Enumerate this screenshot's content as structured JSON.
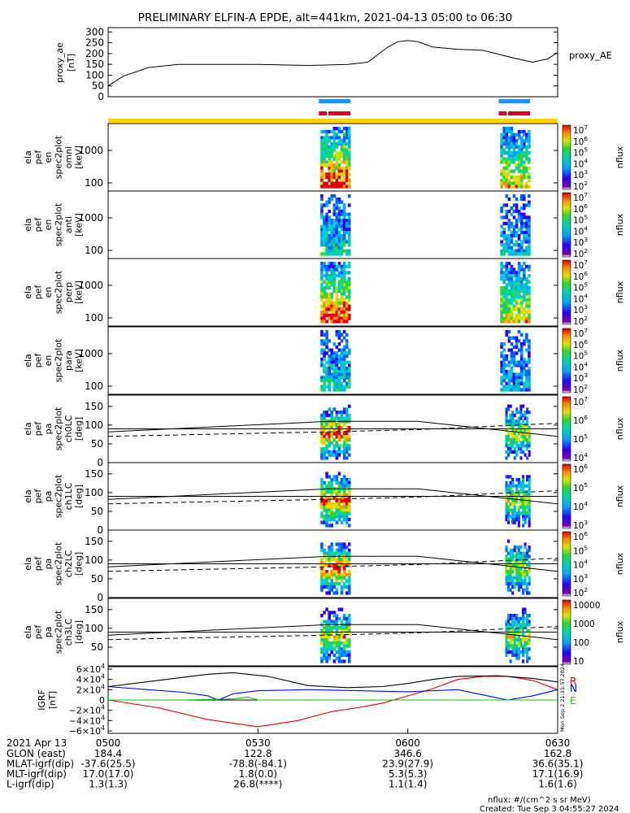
{
  "title": "PRELIMINARY ELFIN-A EPDE, alt=441km, 2021-04-13 05:00 to 06:30",
  "colors": {
    "blue_bar": "#1e90ff",
    "red_bar": "#e0001b",
    "yellow_bar": "#ffd400",
    "igrf_r": "#e00000",
    "igrf_n": "#0000ff",
    "igrf_e": "#00cc00"
  },
  "chart_data": [
    {
      "type": "line",
      "name": "proxy_ae",
      "ylabel_lines": [
        "proxy_ae",
        "[nT]"
      ],
      "legend": "proxy_AE",
      "yticks": [
        "300",
        "250",
        "200",
        "150",
        "100",
        "50",
        "0"
      ],
      "ylim": [
        0,
        300
      ],
      "x_minutes": [
        0,
        3,
        8,
        14,
        20,
        30,
        40,
        48,
        52,
        56,
        58,
        60,
        62,
        65,
        70,
        75,
        82,
        85,
        88,
        90
      ],
      "values": [
        50,
        95,
        135,
        150,
        150,
        150,
        145,
        150,
        160,
        230,
        255,
        260,
        255,
        230,
        220,
        215,
        175,
        160,
        175,
        205
      ]
    },
    {
      "type": "bars",
      "name": "science-zone-bars",
      "blue": [
        [
          42.2,
          48.5
        ],
        [
          78.2,
          84.5
        ]
      ],
      "red": [
        [
          42.2,
          48.5
        ],
        [
          78.2,
          84.5
        ]
      ],
      "yellow": [
        [
          0,
          90
        ]
      ]
    },
    {
      "type": "heatmap",
      "name": "spectrogram-omni",
      "ylabel_lines": [
        "ela",
        "pef",
        "en",
        "spec2plot",
        "omni",
        "[keV]"
      ],
      "yticks": [
        "1000",
        "100"
      ],
      "colorbar_label": "nflux",
      "colorbar_ticks": [
        "10^7",
        "10^6",
        "10^5",
        "10^4",
        "10^3",
        "10^2"
      ]
    },
    {
      "type": "heatmap",
      "name": "spectrogram-anti",
      "ylabel_lines": [
        "ela",
        "pef",
        "en",
        "spec2plot",
        "anti",
        "[keV]"
      ],
      "yticks": [
        "1000",
        "100"
      ],
      "colorbar_label": "nflux",
      "colorbar_ticks": [
        "10^7",
        "10^6",
        "10^5",
        "10^4",
        "10^3",
        "10^2"
      ]
    },
    {
      "type": "heatmap",
      "name": "spectrogram-perp",
      "ylabel_lines": [
        "ela",
        "pef",
        "en",
        "spec2plot",
        "perp",
        "[keV]"
      ],
      "yticks": [
        "1000",
        "100"
      ],
      "colorbar_label": "nflux",
      "colorbar_ticks": [
        "10^7",
        "10^6",
        "10^5",
        "10^4",
        "10^3",
        "10^2"
      ]
    },
    {
      "type": "heatmap",
      "name": "spectrogram-para",
      "ylabel_lines": [
        "ela",
        "pef",
        "en",
        "spec2plot",
        "para",
        "[keV]"
      ],
      "yticks": [
        "1000",
        "100"
      ],
      "colorbar_label": "nflux",
      "colorbar_ticks": [
        "10^7",
        "10^6",
        "10^5",
        "10^4",
        "10^3",
        "10^2"
      ]
    },
    {
      "type": "heatmap",
      "name": "pitch-angle-ch0LC",
      "ylabel_lines": [
        "ela",
        "pef",
        "pa",
        "spec2plot",
        "ch0LC",
        "[deg]"
      ],
      "yticks": [
        "150",
        "100",
        "50",
        "0"
      ],
      "colorbar_label": "nflux",
      "colorbar_ticks": [
        "10^7",
        "10^6",
        "10^5",
        "10^4"
      ]
    },
    {
      "type": "heatmap",
      "name": "pitch-angle-ch1LC",
      "ylabel_lines": [
        "ela",
        "pef",
        "pa",
        "spec2plot",
        "ch1LC",
        "[deg]"
      ],
      "yticks": [
        "150",
        "100",
        "50",
        "0"
      ],
      "colorbar_label": "nflux",
      "colorbar_ticks": [
        "10^6",
        "10^5",
        "10^4",
        "10^3"
      ]
    },
    {
      "type": "heatmap",
      "name": "pitch-angle-ch2LC",
      "ylabel_lines": [
        "ela",
        "pef",
        "pa",
        "spec2plot",
        "ch2LC",
        "[deg]"
      ],
      "yticks": [
        "150",
        "100",
        "50",
        "0"
      ],
      "colorbar_label": "nflux",
      "colorbar_ticks": [
        "10^6",
        "10^5",
        "10^4",
        "10^3",
        "10^2"
      ]
    },
    {
      "type": "heatmap",
      "name": "pitch-angle-ch3LC",
      "ylabel_lines": [
        "ela",
        "pef",
        "pa",
        "spec2plot",
        "ch3LC",
        "[deg]"
      ],
      "yticks": [
        "150",
        "100",
        "50"
      ],
      "colorbar_label": "nflux",
      "colorbar_ticks": [
        "10000",
        "1000",
        "100",
        "10"
      ]
    },
    {
      "type": "line",
      "name": "igrf",
      "ylabel_lines": [
        "IGRF",
        "[nT]"
      ],
      "yticks": [
        "6×10^4",
        "4×10^4",
        "2×10^4",
        "0",
        "−2×10^4",
        "−4×10^4",
        "−6×10^4"
      ],
      "ylim": [
        -60000,
        60000
      ],
      "legend": [
        "R",
        "N",
        "E"
      ],
      "side_text": "Mon Sep 2 21:35:57 2024",
      "series": [
        {
          "name": "R",
          "x_minutes": [
            0,
            10,
            20,
            30,
            38,
            45,
            50,
            55,
            60,
            65,
            70,
            75,
            80,
            85,
            90
          ],
          "values": [
            0,
            -15000,
            -38000,
            -52000,
            -40000,
            -22000,
            -15000,
            -6000,
            8000,
            22000,
            40000,
            46000,
            46000,
            38000,
            20000
          ]
        },
        {
          "name": "N",
          "x_minutes": [
            0,
            8,
            15,
            20,
            22,
            25,
            30,
            40,
            50,
            60,
            70,
            75,
            80,
            85,
            90
          ],
          "values": [
            26000,
            20000,
            15000,
            8000,
            0,
            12000,
            18000,
            20000,
            18000,
            16000,
            20000,
            10000,
            0,
            8000,
            20000
          ]
        },
        {
          "name": "E",
          "x_minutes": [
            0,
            15,
            25,
            28,
            30,
            35,
            40,
            50,
            60,
            70,
            80,
            90
          ],
          "values": [
            0,
            0,
            2000,
            6000,
            0,
            0,
            0,
            0,
            0,
            0,
            0,
            0
          ]
        },
        {
          "name": "total",
          "x_minutes": [
            0,
            10,
            20,
            25,
            32,
            40,
            48,
            55,
            60,
            65,
            70,
            78,
            85,
            90
          ],
          "values": [
            26000,
            38000,
            50000,
            53000,
            46000,
            28000,
            24000,
            26000,
            32000,
            40000,
            46000,
            47000,
            42000,
            35000
          ]
        }
      ]
    }
  ],
  "time_axis": {
    "header_label": "2021 Apr 13",
    "rows": [
      {
        "label": "GLON (east)",
        "values": [
          "184.4",
          "122.8",
          "346.6",
          "162.8"
        ]
      },
      {
        "label": "MLAT-igrf(dip)",
        "values": [
          "-37.6(25.5)",
          "-78.8(-84.1)",
          "23.9(27.9)",
          "36.6(35.1)"
        ]
      },
      {
        "label": "MLT-igrf(dip)",
        "values": [
          "17.0(17.0)",
          "1.8(0.0)",
          "5.3(5.3)",
          "17.1(16.9)"
        ]
      },
      {
        "label": "L-igrf(dip)",
        "values": [
          "1.3(1.3)",
          "26.8(****)",
          "1.1(1.4)",
          "1.6(1.6)"
        ]
      }
    ],
    "ticks": [
      "0500",
      "0530",
      "0600",
      "0630"
    ]
  },
  "footer": {
    "units": "nflux: #/(cm^2 s sr MeV)",
    "created": "Created: Tue Sep  3 04:55:27 2024"
  }
}
